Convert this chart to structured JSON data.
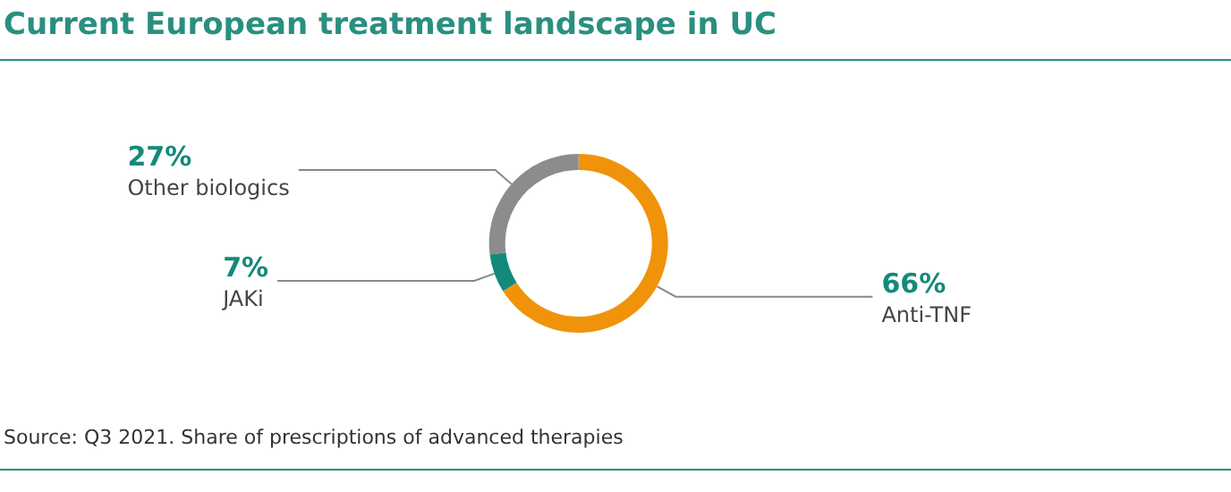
{
  "chart_data": {
    "type": "donut",
    "title": "Current European treatment landscape in UC",
    "categories": [
      "Anti-TNF",
      "JAKi",
      "Other biologics"
    ],
    "values": [
      66,
      7,
      27
    ],
    "colors": [
      "#f0930a",
      "#14897b",
      "#8c8c8c"
    ],
    "value_labels": [
      "66%",
      "7%",
      "27%"
    ],
    "legend": false,
    "annotations": [
      "Source: Q3 2021. Share of prescriptions of advanced therapies"
    ]
  }
}
